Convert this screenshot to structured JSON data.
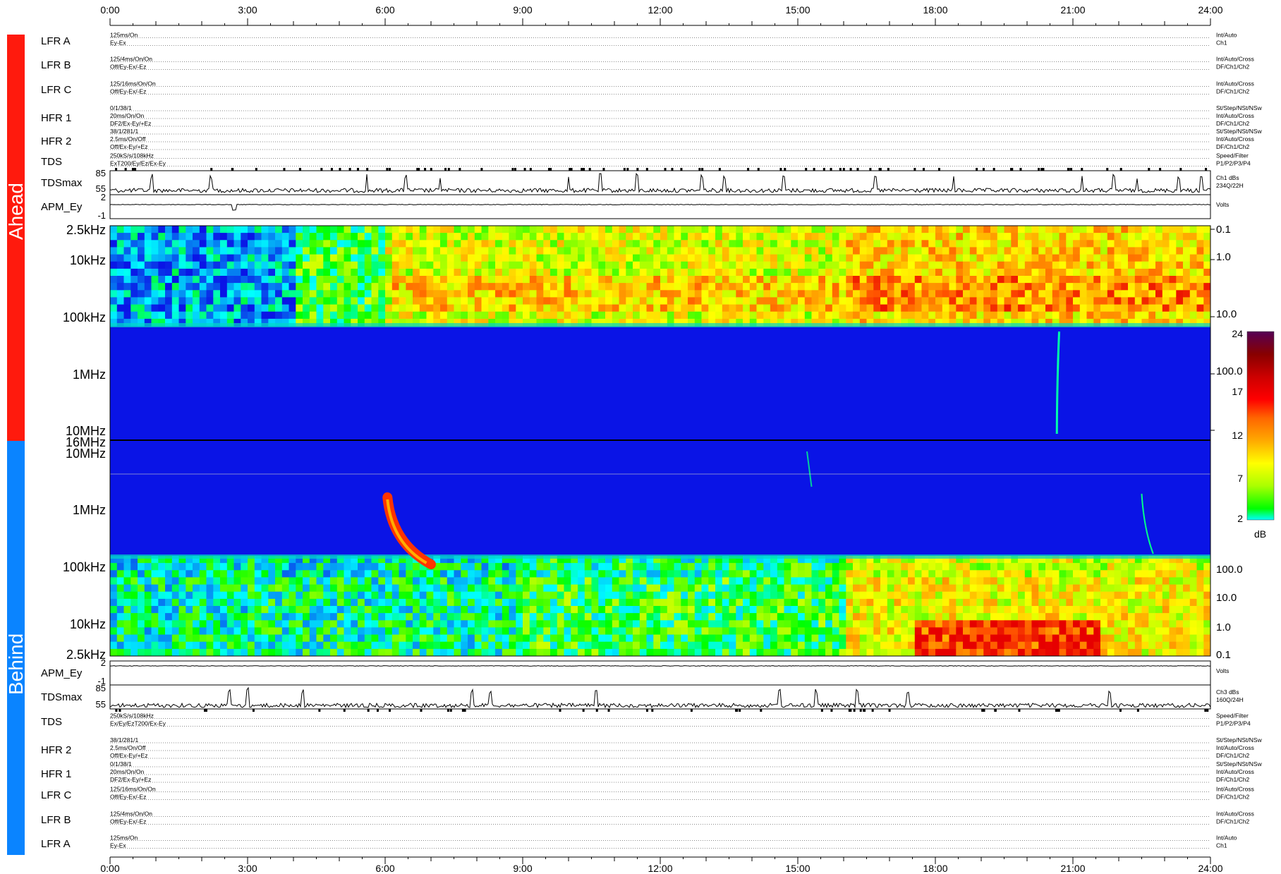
{
  "time_axis": {
    "ticks": [
      "0:00",
      "3:00",
      "6:00",
      "9:00",
      "12:00",
      "15:00",
      "18:00",
      "21:00",
      "24:00"
    ]
  },
  "side_labels": {
    "top": "Ahead",
    "bottom": "Behind"
  },
  "colors": {
    "ahead_bar": "#ff1a0d",
    "behind_bar": "#0a84ff",
    "background_blue": "#0a14e6"
  },
  "ahead_rows": [
    {
      "label": "LFR A",
      "left": [
        "125ms/On",
        "Ey-Ex"
      ],
      "right": [
        "Int/Auto",
        "Ch1"
      ]
    },
    {
      "label": "LFR B",
      "left": [
        "125/4ms/On/On",
        "Off/Ey-Ex/-Ez"
      ],
      "right": [
        "Int/Auto/Cross",
        "DF/Ch1/Ch2"
      ]
    },
    {
      "label": "LFR C",
      "left": [
        "125/16ms/On/On",
        "Off/Ey-Ex/-Ez"
      ],
      "right": [
        "Int/Auto/Cross",
        "DF/Ch1/Ch2"
      ]
    },
    {
      "label": "HFR 1",
      "left": [
        "0/1/38/1",
        "20ms/On/On",
        "DF2/Ex-Ey/+Ez"
      ],
      "right": [
        "St/Step/NSt/NSw",
        "Int/Auto/Cross",
        "DF/Ch1/Ch2"
      ]
    },
    {
      "label": "HFR 2",
      "left": [
        "38/1/281/1",
        "2.5ms/On/Off",
        "Off/Ex-Ey/+Ez"
      ],
      "right": [
        "St/Step/NSt/NSw",
        "Int/Auto/Cross",
        "DF/Ch1/Ch2"
      ]
    },
    {
      "label": "TDS",
      "left": [
        "250kS/s/108kHz",
        "ExT200/Ey/Ez/Ex-Ey"
      ],
      "right": [
        "Speed/Filter",
        "P1/P2/P3/P4"
      ]
    }
  ],
  "behind_rows": [
    {
      "label": "TDS",
      "left": [
        "250kS/s/108kHz",
        "Ex/Ey/EzT200/Ex-Ey"
      ],
      "right": [
        "Speed/Filter",
        "P1/P2/P3/P4"
      ]
    },
    {
      "label": "HFR 2",
      "left": [
        "38/1/281/1",
        "2.5ms/On/Off",
        "Off/Ex-Ey/+Ez"
      ],
      "right": [
        "St/Step/NSt/NSw",
        "Int/Auto/Cross",
        "DF/Ch1/Ch2"
      ]
    },
    {
      "label": "HFR 1",
      "left": [
        "0/1/38/1",
        "20ms/On/On",
        "DF2/Ex-Ey/+Ez"
      ],
      "right": [
        "St/Step/NSt/NSw",
        "Int/Auto/Cross",
        "DF/Ch1/Ch2"
      ]
    },
    {
      "label": "LFR C",
      "left": [
        "125/16ms/On/On",
        "Off/Ey-Ex/-Ez"
      ],
      "right": [
        "Int/Auto/Cross",
        "DF/Ch1/Ch2"
      ]
    },
    {
      "label": "LFR B",
      "left": [
        "125/4ms/On/On",
        "Off/Ey-Ex/-Ez"
      ],
      "right": [
        "Int/Auto/Cross",
        "DF/Ch1/Ch2"
      ]
    },
    {
      "label": "LFR A",
      "left": [
        "125ms/On",
        "Ey-Ex"
      ],
      "right": [
        "Int/Auto",
        "Ch1"
      ]
    }
  ],
  "tdsmax_ahead": {
    "label": "TDSmax",
    "yticks": [
      "85",
      "55"
    ],
    "right": [
      "Ch1 dBs",
      "234Q/22H"
    ]
  },
  "apm_ahead": {
    "label": "APM_Ey",
    "yticks": [
      "2",
      "-1"
    ],
    "right": [
      "Volts"
    ]
  },
  "apm_behind": {
    "label": "APM_Ey",
    "yticks": [
      "2",
      "-1"
    ],
    "right": [
      "Volts"
    ]
  },
  "tdsmax_behind": {
    "label": "TDSmax",
    "yticks": [
      "85",
      "55"
    ],
    "right": [
      "Ch3 dBs",
      "160Q/24H"
    ]
  },
  "spectrogram_ahead": {
    "freq_labels": [
      "2.5kHz",
      "10kHz",
      "100kHz",
      "1MHz",
      "10MHz"
    ],
    "right_labels": [
      "0.1",
      "1.0",
      "10.0",
      "100.0"
    ]
  },
  "spectrogram_behind": {
    "freq_labels": [
      "16MHz",
      "10MHz",
      "1MHz",
      "100kHz",
      "10kHz",
      "2.5kHz"
    ],
    "right_labels": [
      "100.0",
      "10.0",
      "1.0",
      "0.1"
    ]
  },
  "colorbar": {
    "ticks": [
      "24",
      "17",
      "12",
      "7",
      "2"
    ],
    "unit": "dB",
    "stops": [
      "#00ffff",
      "#00ff00",
      "#aaff00",
      "#ffff00",
      "#ffaa00",
      "#ff6600",
      "#ff0000",
      "#cc0000",
      "#880000",
      "#550055"
    ]
  },
  "chart_data": {
    "type": "heatmap",
    "xlabel": "",
    "ylabel": "",
    "x_range": [
      "0:00",
      "24:00"
    ],
    "panels": [
      {
        "name": "Ahead",
        "freq_range": [
          "2.5kHz",
          "16MHz"
        ],
        "features": [
          {
            "kind": "sharp vertical burst",
            "time": "20:45",
            "freq_range": [
              "100kHz",
              "16MHz"
            ]
          }
        ]
      },
      {
        "name": "Behind",
        "freq_range": [
          "2.5kHz",
          "16MHz"
        ],
        "features": [
          {
            "kind": "drifting type III burst",
            "time_start": "6:00",
            "time_end": "7:00",
            "freq_range": [
              "100kHz",
              "3MHz"
            ]
          },
          {
            "kind": "faint vertical burst",
            "time": "22:30",
            "freq_range": [
              "100kHz",
              "3MHz"
            ]
          },
          {
            "kind": "faint feature",
            "time": "15:15",
            "freq_range": [
              "2MHz",
              "10MHz"
            ]
          }
        ]
      }
    ],
    "colorbar_range_dB": [
      2,
      24
    ],
    "tdsmax_ahead_spikes_hours": [
      0.9,
      2.2,
      5.6,
      6.45,
      7.2,
      10.0,
      10.7,
      11.5,
      12.9,
      13.4,
      14.7,
      16.7,
      18.4,
      21.2,
      21.9,
      22.4,
      23.3,
      23.8
    ],
    "tdsmax_behind_spikes_hours": [
      2.6,
      3.0,
      4.2,
      7.9,
      8.3,
      10.6,
      14.6,
      15.4,
      16.3,
      17.4,
      21.8
    ]
  }
}
